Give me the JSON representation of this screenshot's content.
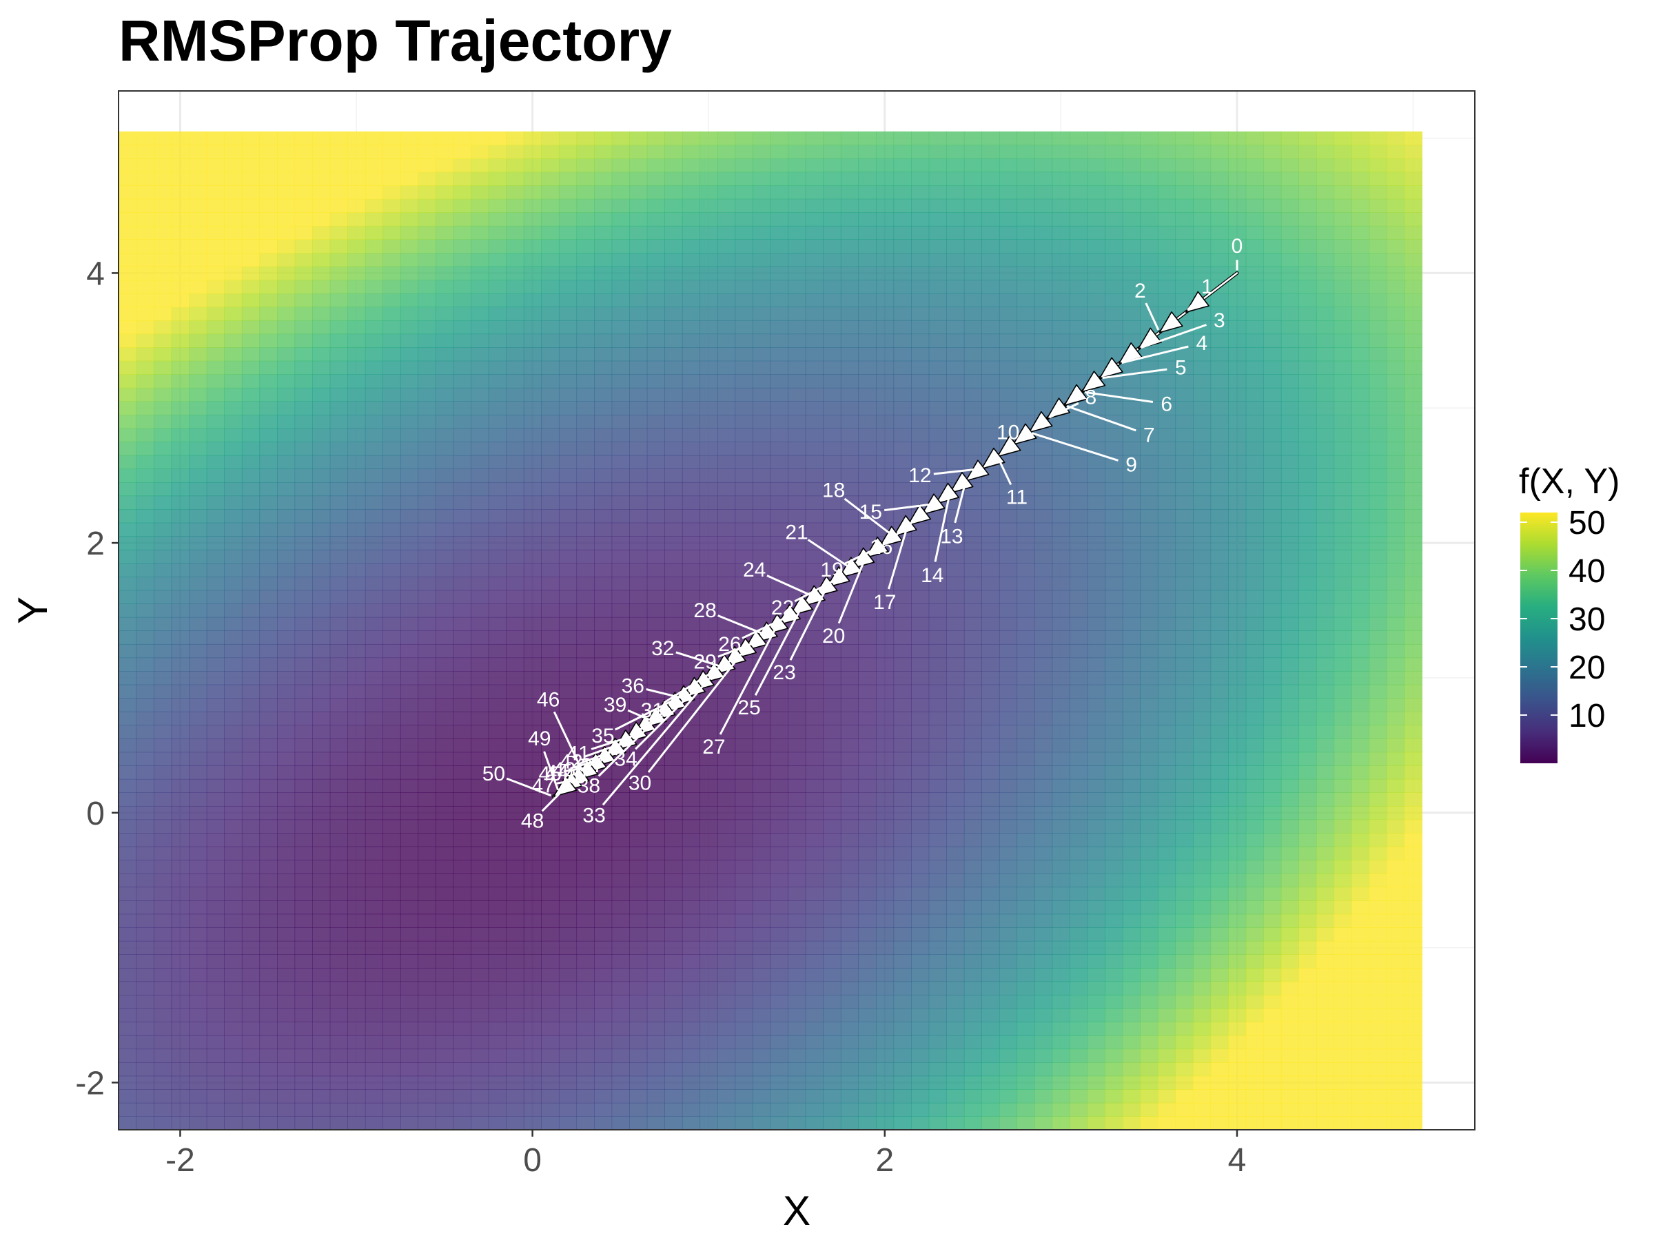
{
  "chart_data": {
    "type": "heatmap",
    "title": "RMSProp Trajectory",
    "xlabel": "X",
    "ylabel": "Y",
    "xlim": [
      -2.35,
      5.35
    ],
    "ylim": [
      -2.35,
      5.35
    ],
    "x_ticks": [
      -2,
      0,
      2,
      4
    ],
    "x_tick_labels": [
      "-2",
      "0",
      "2",
      "4"
    ],
    "y_ticks": [
      -2,
      0,
      2,
      4
    ],
    "y_tick_labels": [
      "-2",
      "0",
      "2",
      "4"
    ],
    "grid": true,
    "surface": {
      "x_range": [
        -2.35,
        5.05
      ],
      "y_range": [
        -2.35,
        5.05
      ],
      "function": "f(X, Y) = X^2 + Y^2 + (X - Y)^2",
      "colorscale": "viridis",
      "value_range": [
        0,
        52
      ]
    },
    "legend": {
      "title": "f(X, Y)",
      "position": "right",
      "ticks": [
        10,
        20,
        30,
        40,
        50
      ],
      "tick_labels": [
        "10",
        "20",
        "30",
        "40",
        "50"
      ]
    },
    "series": [
      {
        "x": [
          4.0,
          3.71,
          3.56,
          3.44,
          3.33,
          3.22,
          3.12,
          3.02,
          2.92,
          2.82,
          2.73,
          2.64,
          2.55,
          2.46,
          2.37,
          2.29,
          2.21,
          2.13,
          2.05,
          1.97,
          1.89,
          1.81,
          1.74,
          1.67,
          1.6,
          1.53,
          1.46,
          1.39,
          1.32,
          1.26,
          1.2,
          1.14,
          1.08,
          1.02,
          0.96,
          0.9,
          0.85,
          0.79,
          0.74,
          0.68,
          0.63,
          0.57,
          0.52,
          0.46,
          0.4,
          0.34,
          0.29,
          0.24,
          0.19,
          0.15,
          0.12
        ],
        "y": [
          4.0,
          3.71,
          3.56,
          3.44,
          3.33,
          3.22,
          3.12,
          3.02,
          2.92,
          2.82,
          2.73,
          2.64,
          2.55,
          2.46,
          2.37,
          2.29,
          2.21,
          2.13,
          2.05,
          1.97,
          1.89,
          1.81,
          1.74,
          1.67,
          1.6,
          1.53,
          1.46,
          1.39,
          1.32,
          1.26,
          1.2,
          1.14,
          1.08,
          1.02,
          0.96,
          0.9,
          0.85,
          0.79,
          0.74,
          0.68,
          0.63,
          0.57,
          0.52,
          0.46,
          0.4,
          0.34,
          0.29,
          0.24,
          0.19,
          0.15,
          0.12
        ],
        "step_labels": [
          "0",
          "1",
          "2",
          "3",
          "4",
          "5",
          "6",
          "7",
          "8",
          "9",
          "10",
          "11",
          "12",
          "13",
          "14",
          "15",
          "16",
          "17",
          "18",
          "19",
          "20",
          "21",
          "22",
          "23",
          "24",
          "25",
          "26",
          "27",
          "28",
          "29",
          "30",
          "31",
          "32",
          "33",
          "34",
          "35",
          "36",
          "37",
          "38",
          "39",
          "40",
          "41",
          "42",
          "43",
          "44",
          "45",
          "46",
          "47",
          "48",
          "49",
          "50"
        ],
        "label_positions": [
          [
            4.0,
            4.2
          ],
          [
            3.83,
            3.9
          ],
          [
            3.45,
            3.87
          ],
          [
            3.9,
            3.65
          ],
          [
            3.8,
            3.48
          ],
          [
            3.68,
            3.3
          ],
          [
            3.6,
            3.03
          ],
          [
            3.5,
            2.8
          ],
          [
            3.17,
            3.08
          ],
          [
            3.4,
            2.58
          ],
          [
            2.7,
            2.82
          ],
          [
            2.75,
            2.34
          ],
          [
            2.2,
            2.5
          ],
          [
            2.38,
            2.05
          ],
          [
            2.27,
            1.76
          ],
          [
            1.92,
            2.23
          ],
          [
            1.98,
            1.97
          ],
          [
            2.0,
            1.56
          ],
          [
            1.71,
            2.39
          ],
          [
            1.7,
            1.8
          ],
          [
            1.71,
            1.31
          ],
          [
            1.5,
            2.08
          ],
          [
            1.42,
            1.52
          ],
          [
            1.43,
            1.04
          ],
          [
            1.26,
            1.8
          ],
          [
            1.23,
            0.78
          ],
          [
            1.12,
            1.25
          ],
          [
            1.03,
            0.49
          ],
          [
            0.98,
            1.5
          ],
          [
            0.98,
            1.12
          ],
          [
            0.61,
            0.22
          ],
          [
            0.68,
            0.76
          ],
          [
            0.74,
            1.22
          ],
          [
            0.35,
            -0.02
          ],
          [
            0.53,
            0.4
          ],
          [
            0.4,
            0.57
          ],
          [
            0.57,
            0.94
          ],
          [
            0.34,
            0.35
          ],
          [
            0.32,
            0.2
          ],
          [
            0.47,
            0.8
          ],
          [
            0.24,
            0.27
          ],
          [
            0.26,
            0.44
          ],
          [
            0.22,
            0.38
          ],
          [
            0.18,
            0.32
          ],
          [
            0.14,
            0.3
          ],
          [
            0.1,
            0.29
          ],
          [
            0.09,
            0.84
          ],
          [
            0.06,
            0.2
          ],
          [
            0.0,
            -0.06
          ],
          [
            0.04,
            0.55
          ],
          [
            -0.22,
            0.29
          ]
        ]
      }
    ]
  }
}
